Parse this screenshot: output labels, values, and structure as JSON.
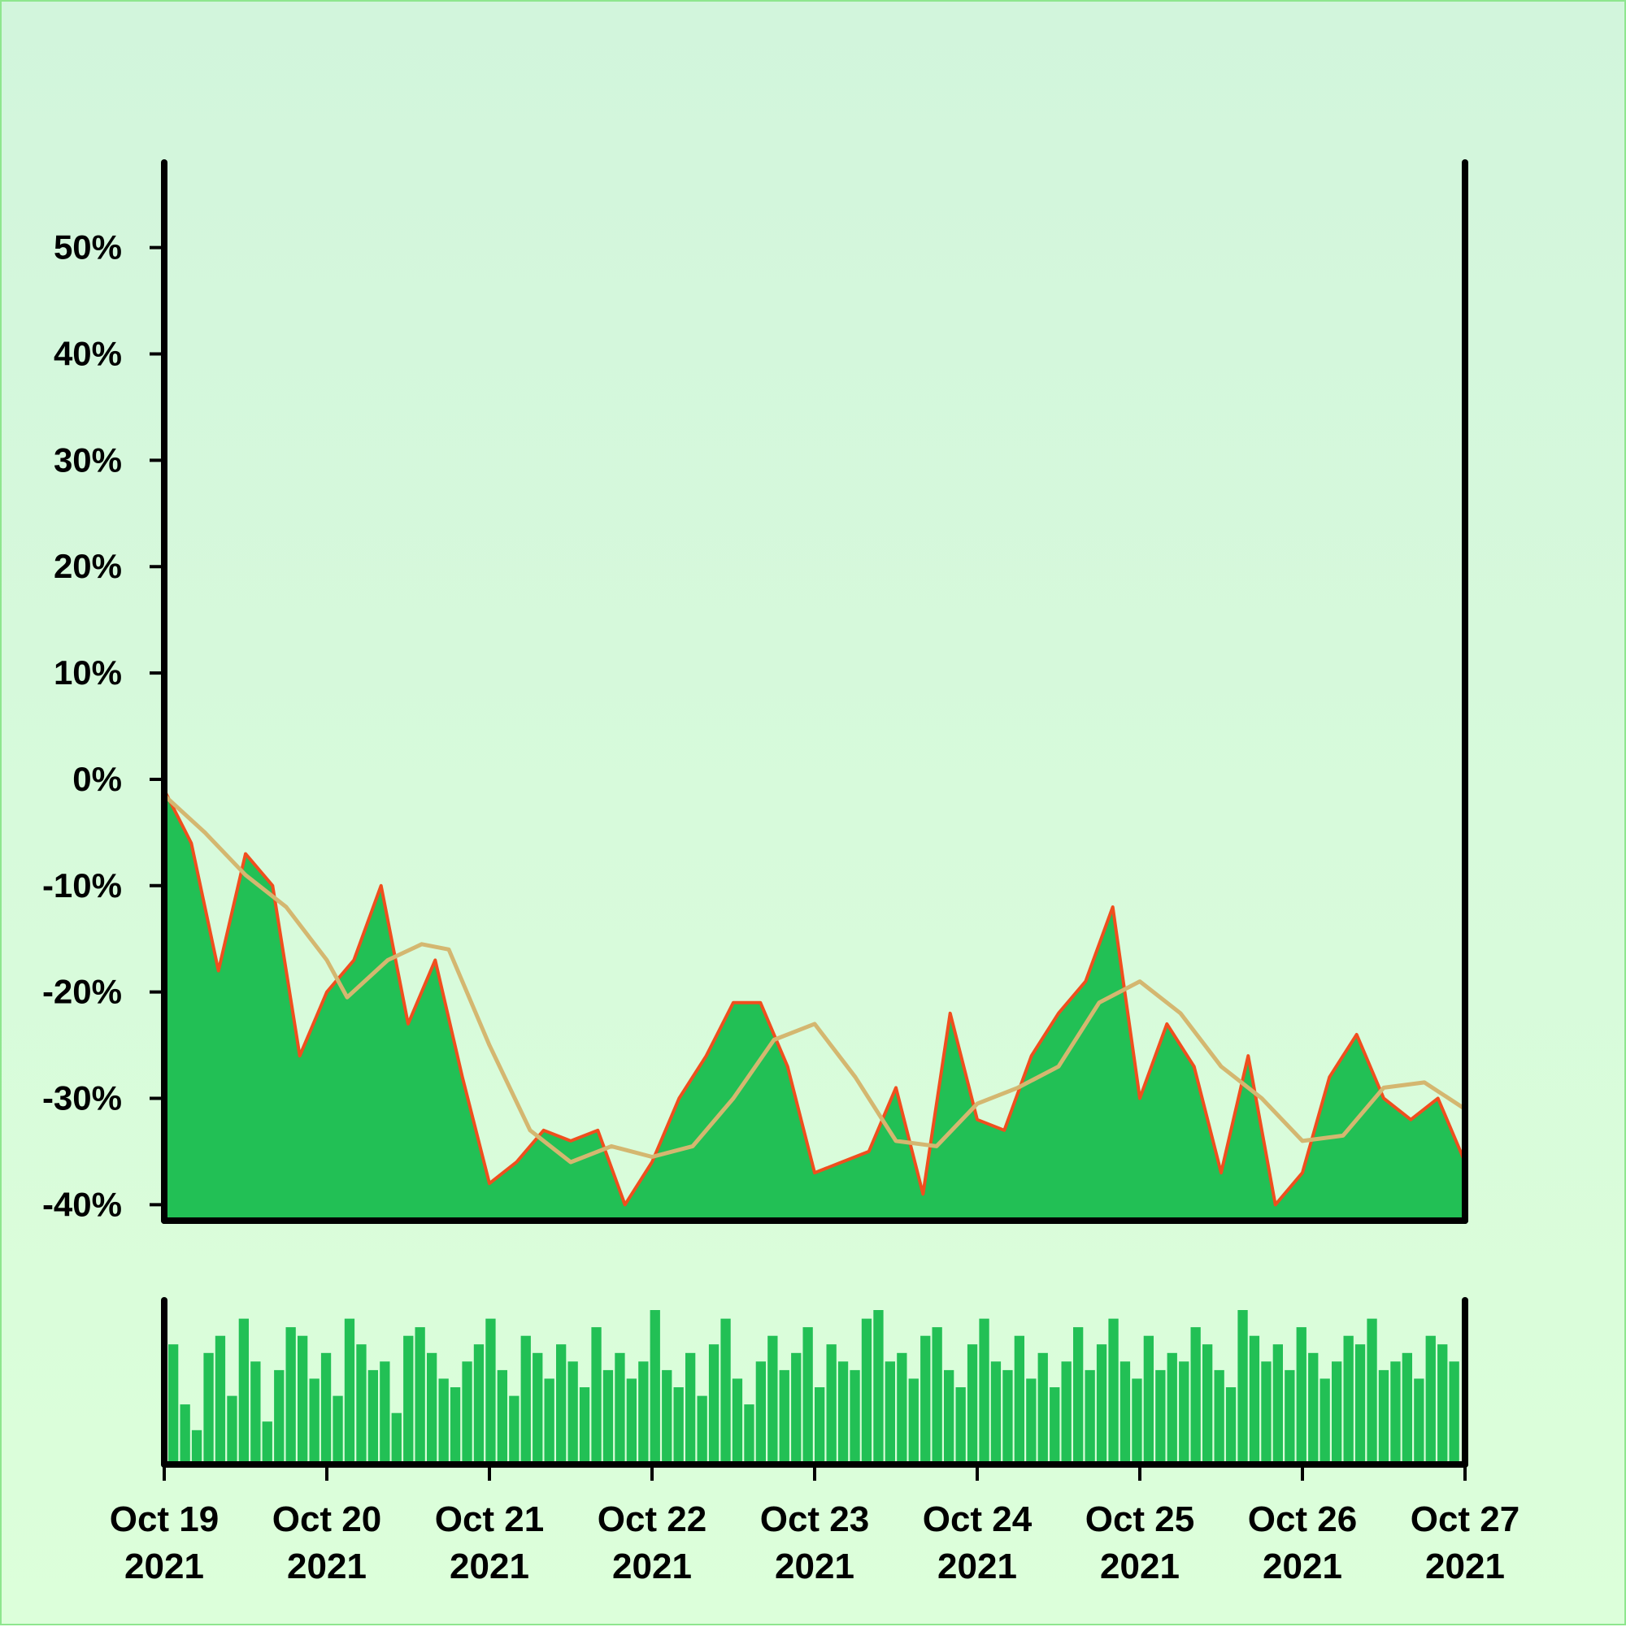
{
  "chart_data": {
    "type": "area",
    "title": "",
    "xlabel": "",
    "ylabel": "",
    "x_ticks": [
      {
        "line1": "Oct 19",
        "line2": "2021"
      },
      {
        "line1": "Oct 20",
        "line2": "2021"
      },
      {
        "line1": "Oct 21",
        "line2": "2021"
      },
      {
        "line1": "Oct 22",
        "line2": "2021"
      },
      {
        "line1": "Oct 23",
        "line2": "2021"
      },
      {
        "line1": "Oct 24",
        "line2": "2021"
      },
      {
        "line1": "Oct 25",
        "line2": "2021"
      },
      {
        "line1": "Oct 26",
        "line2": "2021"
      },
      {
        "line1": "Oct 27",
        "line2": "2021"
      }
    ],
    "y_ticks": [
      "-40%",
      "-30%",
      "-20%",
      "-10%",
      "0%",
      "10%",
      "20%",
      "30%",
      "40%",
      "50%"
    ],
    "xlim": [
      "2021-10-19",
      "2021-10-27"
    ],
    "ylim": [
      -41.5,
      58
    ],
    "grid": false,
    "legend": "none",
    "colors": {
      "area_fill": "#22c055",
      "price_line": "#f04e1e",
      "moving_average": "#d4b770",
      "volume_bars": "#22c055",
      "axes": "#000000"
    },
    "series": [
      {
        "kind": "percent_change_area",
        "points": [
          [
            "2021-10-19T00:00",
            -1
          ],
          [
            "2021-10-19T04:00",
            -6
          ],
          [
            "2021-10-19T08:00",
            -18
          ],
          [
            "2021-10-19T12:00",
            -7
          ],
          [
            "2021-10-19T16:00",
            -10
          ],
          [
            "2021-10-19T20:00",
            -26
          ],
          [
            "2021-10-20T00:00",
            -20
          ],
          [
            "2021-10-20T04:00",
            -17
          ],
          [
            "2021-10-20T08:00",
            -10
          ],
          [
            "2021-10-20T12:00",
            -23
          ],
          [
            "2021-10-20T16:00",
            -17
          ],
          [
            "2021-10-20T20:00",
            -28
          ],
          [
            "2021-10-21T00:00",
            -38
          ],
          [
            "2021-10-21T04:00",
            -36
          ],
          [
            "2021-10-21T08:00",
            -33
          ],
          [
            "2021-10-21T12:00",
            -34
          ],
          [
            "2021-10-21T16:00",
            -33
          ],
          [
            "2021-10-21T20:00",
            -40
          ],
          [
            "2021-10-22T00:00",
            -36
          ],
          [
            "2021-10-22T04:00",
            -30
          ],
          [
            "2021-10-22T08:00",
            -26
          ],
          [
            "2021-10-22T12:00",
            -21
          ],
          [
            "2021-10-22T16:00",
            -21
          ],
          [
            "2021-10-22T20:00",
            -27
          ],
          [
            "2021-10-23T00:00",
            -37
          ],
          [
            "2021-10-23T04:00",
            -36
          ],
          [
            "2021-10-23T08:00",
            -35
          ],
          [
            "2021-10-23T12:00",
            -29
          ],
          [
            "2021-10-23T16:00",
            -39
          ],
          [
            "2021-10-23T20:00",
            -22
          ],
          [
            "2021-10-24T00:00",
            -32
          ],
          [
            "2021-10-24T04:00",
            -33
          ],
          [
            "2021-10-24T08:00",
            -26
          ],
          [
            "2021-10-24T12:00",
            -22
          ],
          [
            "2021-10-24T16:00",
            -19
          ],
          [
            "2021-10-24T20:00",
            -12
          ],
          [
            "2021-10-25T00:00",
            -30
          ],
          [
            "2021-10-25T04:00",
            -23
          ],
          [
            "2021-10-25T08:00",
            -27
          ],
          [
            "2021-10-25T12:00",
            -37
          ],
          [
            "2021-10-25T16:00",
            -26
          ],
          [
            "2021-10-25T20:00",
            -40
          ],
          [
            "2021-10-26T00:00",
            -37
          ],
          [
            "2021-10-26T04:00",
            -28
          ],
          [
            "2021-10-26T08:00",
            -24
          ],
          [
            "2021-10-26T12:00",
            -30
          ],
          [
            "2021-10-26T16:00",
            -32
          ],
          [
            "2021-10-26T20:00",
            -30
          ],
          [
            "2021-10-27T00:00",
            -36
          ]
        ]
      },
      {
        "kind": "moving_average",
        "points": [
          [
            "2021-10-19T00:00",
            -1.5
          ],
          [
            "2021-10-19T06:00",
            -5
          ],
          [
            "2021-10-19T12:00",
            -9
          ],
          [
            "2021-10-19T18:00",
            -12
          ],
          [
            "2021-10-20T00:00",
            -17
          ],
          [
            "2021-10-20T03:00",
            -20.5
          ],
          [
            "2021-10-20T09:00",
            -17
          ],
          [
            "2021-10-20T14:00",
            -15.5
          ],
          [
            "2021-10-20T18:00",
            -16
          ],
          [
            "2021-10-21T00:00",
            -25
          ],
          [
            "2021-10-21T06:00",
            -33
          ],
          [
            "2021-10-21T12:00",
            -36
          ],
          [
            "2021-10-21T18:00",
            -34.5
          ],
          [
            "2021-10-22T00:00",
            -35.5
          ],
          [
            "2021-10-22T06:00",
            -34.5
          ],
          [
            "2021-10-22T12:00",
            -30
          ],
          [
            "2021-10-22T18:00",
            -24.5
          ],
          [
            "2021-10-23T00:00",
            -23
          ],
          [
            "2021-10-23T06:00",
            -28
          ],
          [
            "2021-10-23T12:00",
            -34
          ],
          [
            "2021-10-23T18:00",
            -34.5
          ],
          [
            "2021-10-24T00:00",
            -30.5
          ],
          [
            "2021-10-24T06:00",
            -29
          ],
          [
            "2021-10-24T12:00",
            -27
          ],
          [
            "2021-10-24T18:00",
            -21
          ],
          [
            "2021-10-25T00:00",
            -19
          ],
          [
            "2021-10-25T06:00",
            -22
          ],
          [
            "2021-10-25T12:00",
            -27
          ],
          [
            "2021-10-25T18:00",
            -30
          ],
          [
            "2021-10-26T00:00",
            -34
          ],
          [
            "2021-10-26T06:00",
            -33.5
          ],
          [
            "2021-10-26T12:00",
            -29
          ],
          [
            "2021-10-26T18:00",
            -28.5
          ],
          [
            "2021-10-27T00:00",
            -31
          ]
        ]
      }
    ],
    "volume": {
      "kind": "volume_bars",
      "values": [
        70,
        35,
        20,
        65,
        75,
        40,
        85,
        60,
        25,
        55,
        80,
        75,
        50,
        65,
        40,
        85,
        70,
        55,
        60,
        30,
        75,
        80,
        65,
        50,
        45,
        60,
        70,
        85,
        55,
        40,
        75,
        65,
        50,
        70,
        60,
        45,
        80,
        55,
        65,
        50,
        60,
        90,
        55,
        45,
        65,
        40,
        70,
        85,
        50,
        35,
        60,
        75,
        55,
        65,
        80,
        45,
        70,
        60,
        55,
        85,
        90,
        60,
        65,
        50,
        75,
        80,
        55,
        45,
        70,
        85,
        60,
        55,
        75,
        50,
        65,
        45,
        60,
        80,
        55,
        70,
        85,
        60,
        50,
        75,
        55,
        65,
        60,
        80,
        70,
        55,
        45,
        90,
        75,
        60,
        70,
        55,
        80,
        65,
        50,
        60,
        75,
        70,
        85,
        55,
        60,
        65,
        50,
        75,
        70,
        60
      ]
    }
  }
}
